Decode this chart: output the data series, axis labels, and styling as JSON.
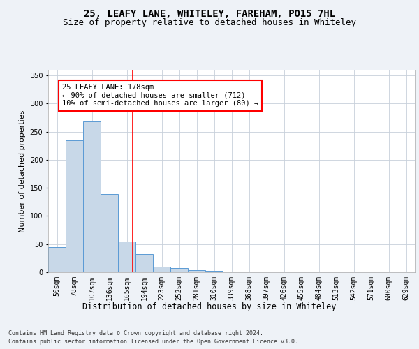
{
  "title": "25, LEAFY LANE, WHITELEY, FAREHAM, PO15 7HL",
  "subtitle": "Size of property relative to detached houses in Whiteley",
  "xlabel": "Distribution of detached houses by size in Whiteley",
  "ylabel": "Number of detached properties",
  "categories": [
    "50sqm",
    "78sqm",
    "107sqm",
    "136sqm",
    "165sqm",
    "194sqm",
    "223sqm",
    "252sqm",
    "281sqm",
    "310sqm",
    "339sqm",
    "368sqm",
    "397sqm",
    "426sqm",
    "455sqm",
    "484sqm",
    "513sqm",
    "542sqm",
    "571sqm",
    "600sqm",
    "629sqm"
  ],
  "values": [
    45,
    235,
    268,
    139,
    55,
    32,
    10,
    7,
    4,
    3,
    0,
    0,
    0,
    0,
    0,
    0,
    0,
    0,
    0,
    0,
    0
  ],
  "bar_color": "#c8d8e8",
  "bar_edge_color": "#5b9bd5",
  "property_line_bin": 4.35,
  "annotation_text": "25 LEAFY LANE: 178sqm\n← 90% of detached houses are smaller (712)\n10% of semi-detached houses are larger (80) →",
  "annotation_box_color": "white",
  "annotation_box_edge_color": "red",
  "ylim": [
    0,
    360
  ],
  "yticks": [
    0,
    50,
    100,
    150,
    200,
    250,
    300,
    350
  ],
  "footer1": "Contains HM Land Registry data © Crown copyright and database right 2024.",
  "footer2": "Contains public sector information licensed under the Open Government Licence v3.0.",
  "bg_color": "#eef2f7",
  "plot_bg_color": "white",
  "grid_color": "#c8d0da",
  "title_fontsize": 10,
  "subtitle_fontsize": 9,
  "tick_fontsize": 7,
  "ylabel_fontsize": 8,
  "xlabel_fontsize": 8.5,
  "footer_fontsize": 6,
  "annotation_fontsize": 7.5
}
